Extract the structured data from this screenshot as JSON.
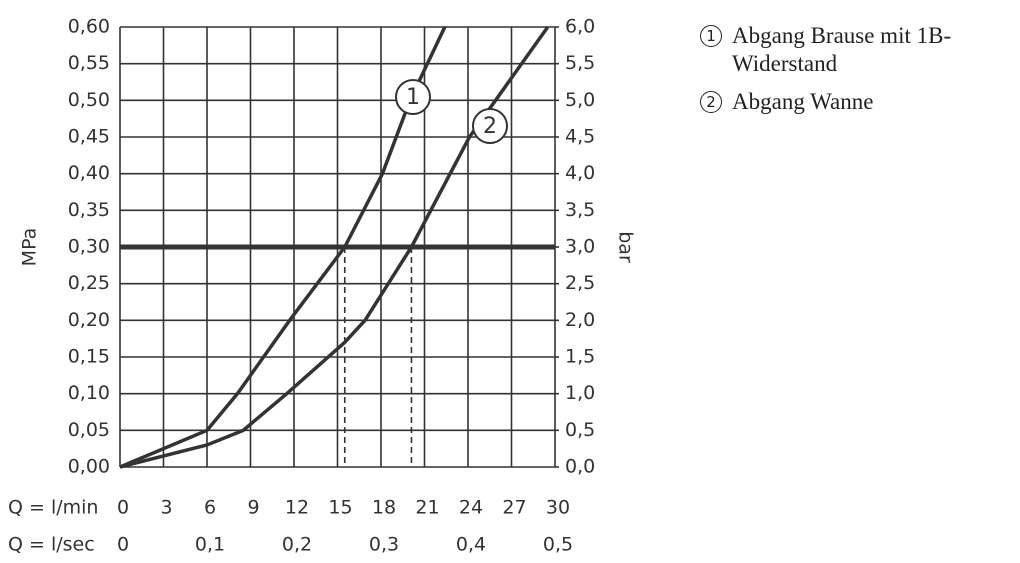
{
  "chart_data": {
    "type": "line",
    "xlabel": "Q = l/min",
    "x2label": "Q = l/sec",
    "ylabel": "MPa",
    "y2label": "bar",
    "xlim": [
      0,
      30
    ],
    "xticks": [
      0,
      3,
      6,
      9,
      12,
      15,
      18,
      21,
      24,
      27,
      30
    ],
    "x2lim": [
      0,
      0.5
    ],
    "x2ticks": [
      0,
      {
        "value": 0.1,
        "label": "0,1"
      },
      {
        "value": 0.2,
        "label": "0,2"
      },
      {
        "value": 0.3,
        "label": "0,3"
      },
      {
        "value": 0.4,
        "label": "0,4"
      },
      {
        "value": 0.5,
        "label": "0,5"
      }
    ],
    "ylim": [
      0,
      0.6
    ],
    "yticks": [
      {
        "value": 0,
        "label": "0,00"
      },
      {
        "value": 0.05,
        "label": "0,05"
      },
      {
        "value": 0.1,
        "label": "0,10"
      },
      {
        "value": 0.15,
        "label": "0,15"
      },
      {
        "value": 0.2,
        "label": "0,20"
      },
      {
        "value": 0.25,
        "label": "0,25"
      },
      {
        "value": 0.3,
        "label": "0,30"
      },
      {
        "value": 0.35,
        "label": "0,35"
      },
      {
        "value": 0.4,
        "label": "0,40"
      },
      {
        "value": 0.45,
        "label": "0,45"
      },
      {
        "value": 0.5,
        "label": "0,50"
      },
      {
        "value": 0.55,
        "label": "0,55"
      },
      {
        "value": 0.6,
        "label": "0,60"
      }
    ],
    "y2lim": [
      0,
      6
    ],
    "y2ticks": [
      {
        "value": 0,
        "label": "0,0"
      },
      {
        "value": 0.5,
        "label": "0,5"
      },
      {
        "value": 1,
        "label": "1,0"
      },
      {
        "value": 1.5,
        "label": "1,5"
      },
      {
        "value": 2,
        "label": "2,0"
      },
      {
        "value": 2.5,
        "label": "2,5"
      },
      {
        "value": 3,
        "label": "3,0"
      },
      {
        "value": 3.5,
        "label": "3,5"
      },
      {
        "value": 4,
        "label": "4,0"
      },
      {
        "value": 4.5,
        "label": "4,5"
      },
      {
        "value": 5,
        "label": "5,0"
      },
      {
        "value": 5.5,
        "label": "5,5"
      },
      {
        "value": 6,
        "label": "6,0"
      }
    ],
    "grid": true,
    "color": "#333333",
    "hline": 0.3,
    "dashed_x": [
      15.5,
      20.1
    ],
    "series": [
      {
        "name": "Abgang Brause mit 1B-Widerstand",
        "label": "1",
        "x": [
          0,
          6,
          8.1,
          11.7,
          15.5,
          18.1,
          20,
          22.4
        ],
        "values": [
          0,
          0.05,
          0.1,
          0.2,
          0.3,
          0.4,
          0.5,
          0.6
        ]
      },
      {
        "name": "Abgang Wanne",
        "label": "2",
        "x": [
          0,
          6,
          8.5,
          11.5,
          15.5,
          16.9,
          20.1,
          24.1,
          29.5
        ],
        "values": [
          0,
          0.03,
          0.05,
          0.1,
          0.17,
          0.2,
          0.3,
          0.45,
          0.6
        ]
      }
    ]
  }
}
